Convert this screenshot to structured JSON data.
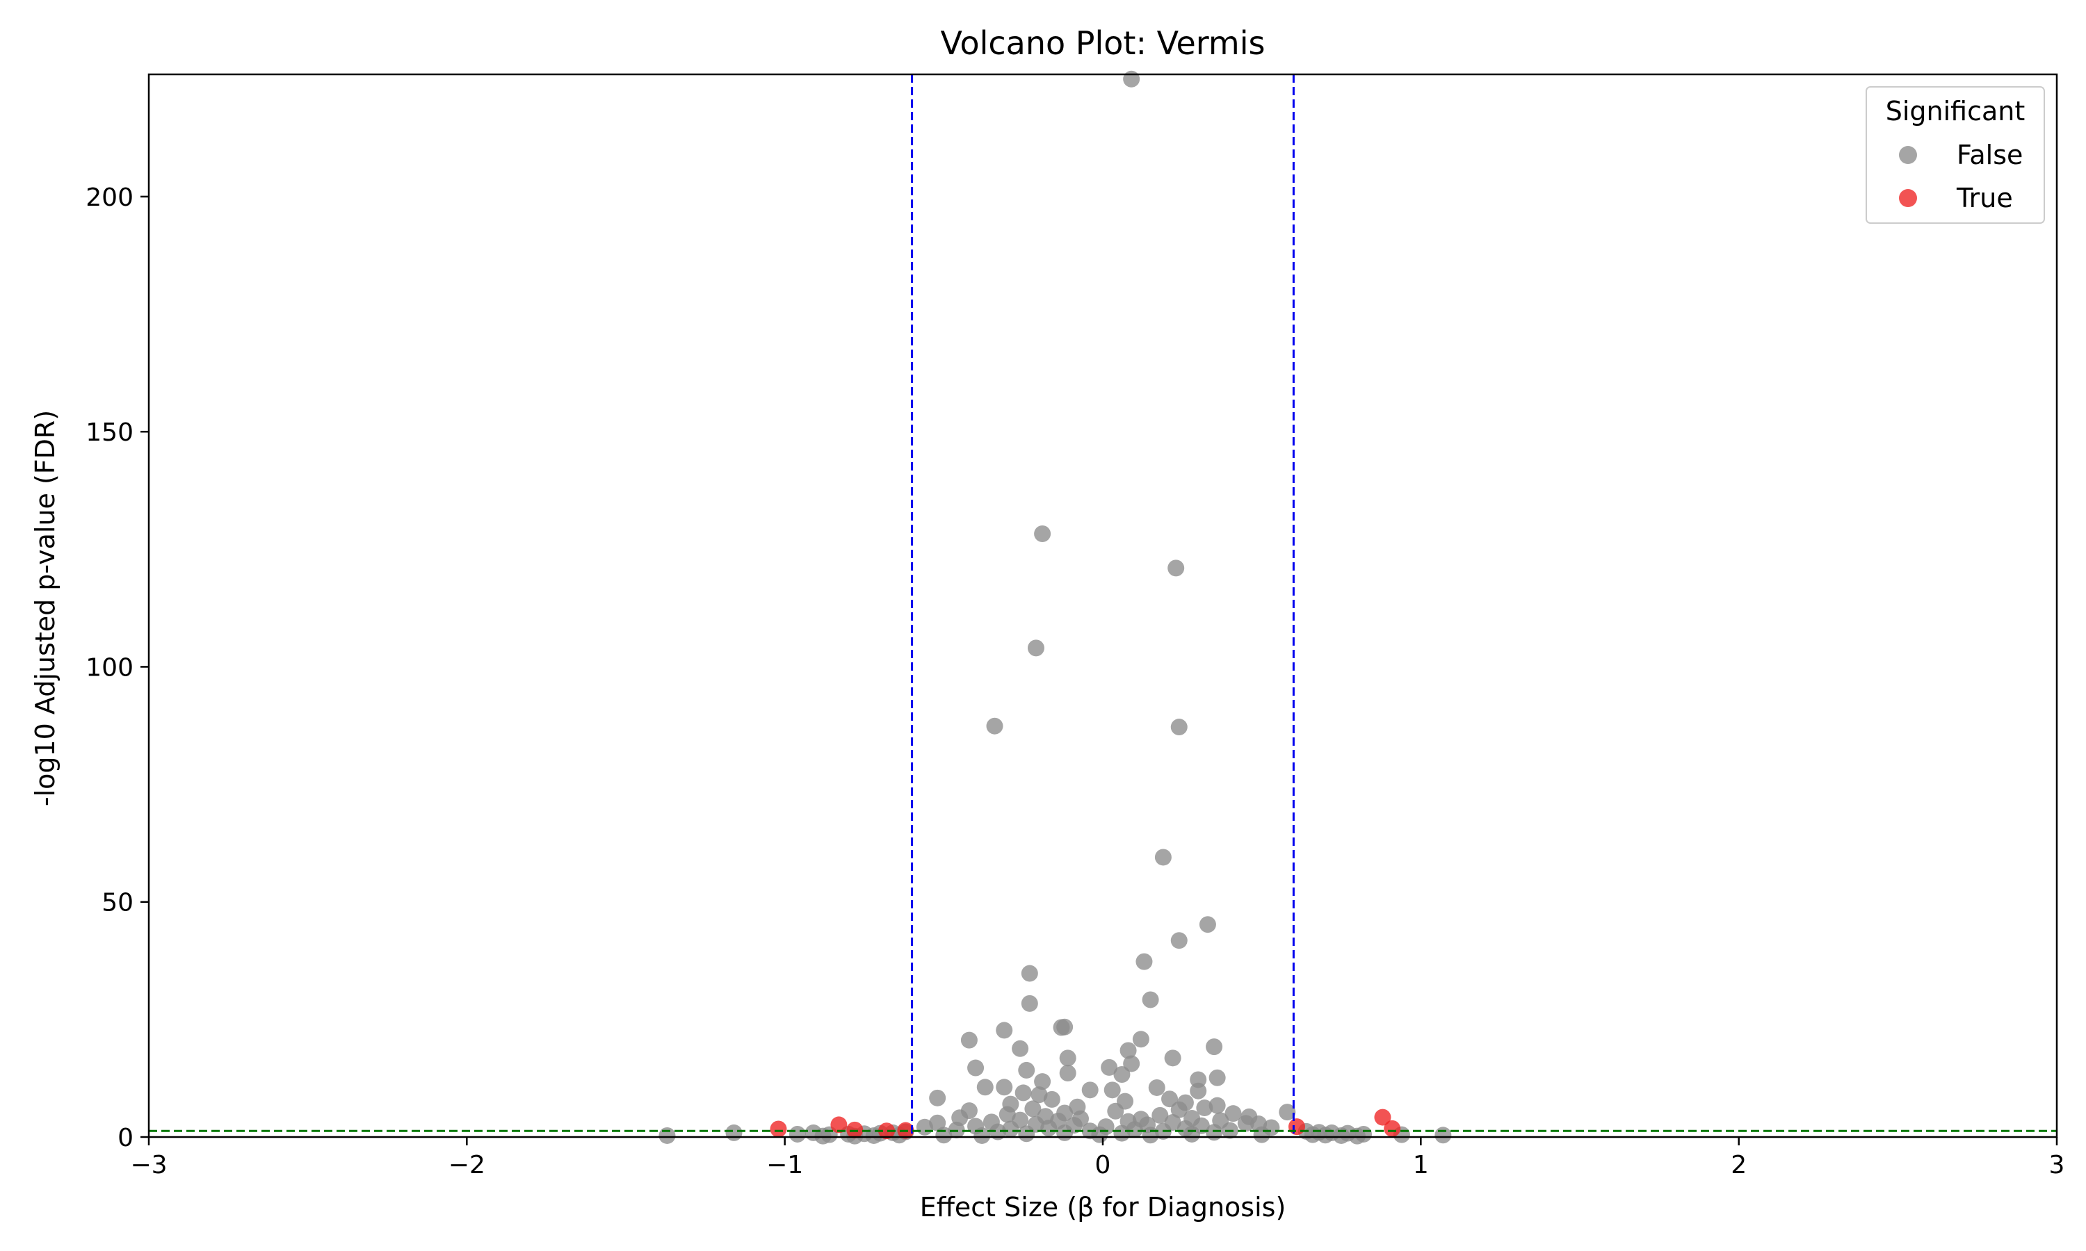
{
  "chart_data": {
    "type": "scatter",
    "title": "Volcano Plot: Vermis",
    "xlabel": "Effect Size (β for Diagnosis)",
    "ylabel": "-log10 Adjusted p-value (FDR)",
    "xlim": [
      -3,
      3
    ],
    "ylim": [
      0,
      226
    ],
    "x_ticks": [
      -3,
      -2,
      -1,
      0,
      1,
      2,
      3
    ],
    "x_tick_labels": [
      "−3",
      "−2",
      "−1",
      "0",
      "1",
      "2",
      "3"
    ],
    "y_ticks": [
      0,
      50,
      100,
      150,
      200
    ],
    "y_tick_labels": [
      "0",
      "50",
      "100",
      "150",
      "200"
    ],
    "grid": false,
    "legend": {
      "title": "Significant",
      "placement": "top-right",
      "entries": [
        {
          "label": "False",
          "color": "#8c8c8c"
        },
        {
          "label": "True",
          "color": "#ee2222"
        }
      ]
    },
    "thresholds": {
      "effect_size": [
        -0.6,
        0.6
      ],
      "effect_color": "#0000ee",
      "fdr_line_y": 1.3,
      "fdr_color": "#007700"
    },
    "series": [
      {
        "name": "False",
        "color": "#8c8c8c",
        "points": [
          [
            0.09,
            225
          ],
          [
            -0.19,
            128.3
          ],
          [
            0.23,
            121
          ],
          [
            -0.21,
            104
          ],
          [
            -0.34,
            87.4
          ],
          [
            0.24,
            87.2
          ],
          [
            0.19,
            59.5
          ],
          [
            0.33,
            45.2
          ],
          [
            0.24,
            41.8
          ],
          [
            0.13,
            37.3
          ],
          [
            -0.23,
            34.8
          ],
          [
            0.15,
            29.2
          ],
          [
            -0.23,
            28.4
          ],
          [
            -0.12,
            23.4
          ],
          [
            -0.13,
            23.3
          ],
          [
            -0.31,
            22.7
          ],
          [
            0.12,
            20.8
          ],
          [
            -0.42,
            20.6
          ],
          [
            0.35,
            19.2
          ],
          [
            -0.26,
            18.8
          ],
          [
            0.08,
            18.4
          ],
          [
            0.22,
            16.8
          ],
          [
            -0.11,
            16.8
          ],
          [
            0.09,
            15.6
          ],
          [
            0.02,
            14.8
          ],
          [
            -0.4,
            14.7
          ],
          [
            -0.24,
            14.2
          ],
          [
            -0.11,
            13.6
          ],
          [
            0.06,
            13.3
          ],
          [
            0.36,
            12.6
          ],
          [
            0.3,
            12.2
          ],
          [
            -0.19,
            11.8
          ],
          [
            -0.31,
            10.6
          ],
          [
            0.17,
            10.5
          ],
          [
            -0.37,
            10.6
          ],
          [
            0.03,
            10
          ],
          [
            -0.04,
            10
          ],
          [
            0.3,
            9.8
          ],
          [
            -0.25,
            9.4
          ],
          [
            -0.2,
            9
          ],
          [
            -0.52,
            8.3
          ],
          [
            0.21,
            8.1
          ],
          [
            -0.16,
            8
          ],
          [
            0.07,
            7.6
          ],
          [
            0.26,
            7.3
          ],
          [
            -0.29,
            7
          ],
          [
            0.36,
            6.7
          ],
          [
            -0.08,
            6.4
          ],
          [
            0.32,
            6.2
          ],
          [
            -0.22,
            6
          ],
          [
            0.24,
            5.8
          ],
          [
            -0.42,
            5.6
          ],
          [
            0.04,
            5.5
          ],
          [
            0.58,
            5.3
          ],
          [
            -0.12,
            5.1
          ],
          [
            0.41,
            5
          ],
          [
            -0.3,
            4.8
          ],
          [
            0.18,
            4.6
          ],
          [
            -0.18,
            4.4
          ],
          [
            0.46,
            4.3
          ],
          [
            -0.45,
            4.1
          ],
          [
            0.28,
            4
          ],
          [
            -0.07,
            3.9
          ],
          [
            0.12,
            3.8
          ],
          [
            -0.26,
            3.6
          ],
          [
            0.37,
            3.5
          ],
          [
            -0.14,
            3.4
          ],
          [
            0.08,
            3.3
          ],
          [
            -0.35,
            3.2
          ],
          [
            0.22,
            3.1
          ],
          [
            -0.52,
            3
          ],
          [
            0.45,
            2.9
          ],
          [
            0.49,
            2.8
          ],
          [
            -0.21,
            2.7
          ],
          [
            0.14,
            2.6
          ],
          [
            -0.09,
            2.5
          ],
          [
            0.31,
            2.4
          ],
          [
            -0.4,
            2.3
          ],
          [
            0.01,
            2.2
          ],
          [
            -0.56,
            2.1
          ],
          [
            0.53,
            2
          ],
          [
            -0.17,
            1.9
          ],
          [
            0.26,
            1.8
          ],
          [
            -0.29,
            1.7
          ],
          [
            0.1,
            1.6
          ],
          [
            -0.46,
            1.5
          ],
          [
            0.4,
            1.4
          ],
          [
            -0.04,
            1.3
          ],
          [
            0.19,
            1.2
          ],
          [
            -0.33,
            1.1
          ],
          [
            0.35,
            1
          ],
          [
            -0.12,
            0.9
          ],
          [
            0.06,
            0.8
          ],
          [
            -0.24,
            0.7
          ],
          [
            0.28,
            0.6
          ],
          [
            -0.01,
            0.5
          ],
          [
            0.5,
            0.5
          ],
          [
            -0.5,
            0.4
          ],
          [
            0.15,
            0.4
          ],
          [
            -0.38,
            0.3
          ],
          [
            0.64,
            1.2
          ],
          [
            0.68,
            1.0
          ],
          [
            0.72,
            0.9
          ],
          [
            0.77,
            0.8
          ],
          [
            0.82,
            0.6
          ],
          [
            0.94,
            0.5
          ],
          [
            1.07,
            0.4
          ],
          [
            0.66,
            0.5
          ],
          [
            0.7,
            0.4
          ],
          [
            0.75,
            0.3
          ],
          [
            0.8,
            0.2
          ],
          [
            -0.62,
            1.1
          ],
          [
            -0.66,
            0.9
          ],
          [
            -0.7,
            0.8
          ],
          [
            -0.75,
            0.7
          ],
          [
            -0.8,
            0.6
          ],
          [
            -0.86,
            0.5
          ],
          [
            -0.91,
            0.9
          ],
          [
            -0.96,
            0.6
          ],
          [
            -1.16,
            0.9
          ],
          [
            -1.37,
            0.3
          ],
          [
            -0.64,
            0.4
          ],
          [
            -0.72,
            0.3
          ],
          [
            -0.78,
            0.2
          ],
          [
            -0.88,
            0.2
          ]
        ]
      },
      {
        "name": "True",
        "color": "#ee2222",
        "points": [
          [
            -0.83,
            2.6
          ],
          [
            -1.02,
            1.7
          ],
          [
            -0.68,
            1.3
          ],
          [
            -0.62,
            1.4
          ],
          [
            0.61,
            2.2
          ],
          [
            0.88,
            4.2
          ],
          [
            0.91,
            1.8
          ],
          [
            -0.78,
            1.5
          ]
        ]
      }
    ]
  }
}
